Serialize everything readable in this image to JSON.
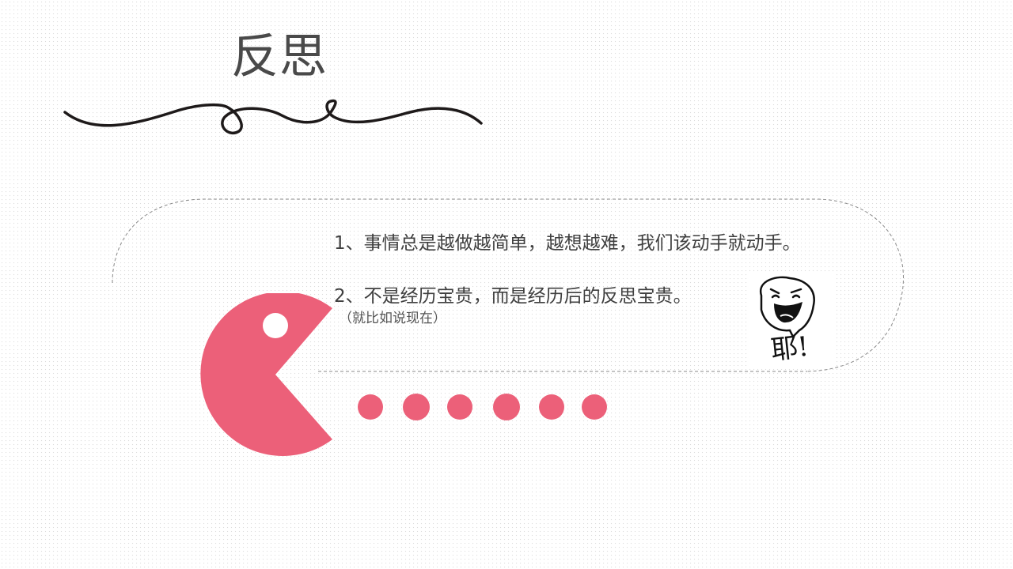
{
  "slide": {
    "title": "反思",
    "points": [
      "1、事情总是越做越简单，越想越难，我们该动手就动手。",
      "2、不是经历宝贵，而是经历后的反思宝贵。"
    ],
    "note": "（就比如说现在）",
    "face_caption": "耶!"
  },
  "colors": {
    "accent": "#ec6079",
    "text": "#3f3f3f",
    "title": "#4a4a4a",
    "ink": "#1e1a1a"
  },
  "decor": {
    "pellet_count": 6,
    "icons": [
      "pacman-icon",
      "pellet-icon",
      "squiggle-line",
      "laughing-face-icon"
    ]
  }
}
